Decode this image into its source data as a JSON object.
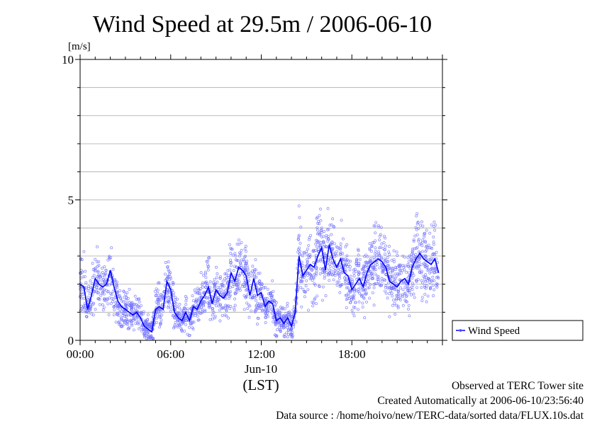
{
  "chart_data": {
    "type": "scatter",
    "title": "Wind Speed at 29.5m / 2006-06-10",
    "ylabel": "[m/s]",
    "ylim": [
      0,
      10
    ],
    "yticks": [
      "0",
      "5",
      "10"
    ],
    "xlim": [
      0,
      24
    ],
    "xticks": [
      {
        "hour": 0,
        "label": "00:00"
      },
      {
        "hour": 6,
        "label": "06:00"
      },
      {
        "hour": 12,
        "label": "12:00"
      },
      {
        "hour": 18,
        "label": "18:00"
      }
    ],
    "xdate": "Jun-10",
    "xunit": "(LST)",
    "grid": true,
    "legend_position": "right",
    "series": [
      {
        "name": "Wind Speed",
        "color": "#0000ff",
        "point_color": "#6f6fff",
        "x": [
          0.0,
          0.25,
          0.5,
          0.75,
          1.0,
          1.25,
          1.5,
          1.75,
          2.0,
          2.25,
          2.5,
          2.75,
          3.0,
          3.25,
          3.5,
          3.75,
          4.0,
          4.25,
          4.5,
          4.75,
          5.0,
          5.25,
          5.5,
          5.75,
          6.0,
          6.25,
          6.5,
          6.75,
          7.0,
          7.25,
          7.5,
          7.75,
          8.0,
          8.25,
          8.5,
          8.75,
          9.0,
          9.25,
          9.5,
          9.75,
          10.0,
          10.25,
          10.5,
          10.75,
          11.0,
          11.25,
          11.5,
          11.75,
          12.0,
          12.25,
          12.5,
          12.75,
          13.0,
          13.25,
          13.5,
          13.75,
          14.0,
          14.25,
          14.5,
          14.75,
          15.0,
          15.25,
          15.5,
          15.75,
          16.0,
          16.25,
          16.5,
          16.75,
          17.0,
          17.25,
          17.5,
          17.75,
          18.0,
          18.25,
          18.5,
          18.75,
          19.0,
          19.25,
          19.5,
          19.75,
          20.0,
          20.25,
          20.5,
          20.75,
          21.0,
          21.25,
          21.5,
          21.75,
          22.0,
          22.25,
          22.5,
          22.75,
          23.0,
          23.25,
          23.5,
          23.75
        ],
        "y": [
          2.0,
          1.9,
          1.1,
          1.6,
          2.2,
          2.0,
          1.9,
          2.0,
          2.5,
          1.9,
          1.4,
          1.2,
          1.1,
          1.0,
          0.9,
          1.0,
          0.8,
          0.5,
          0.4,
          0.3,
          1.1,
          1.2,
          1.1,
          2.1,
          1.8,
          1.0,
          0.8,
          0.7,
          1.0,
          0.7,
          1.2,
          1.1,
          1.4,
          1.6,
          1.9,
          1.3,
          1.8,
          1.6,
          1.5,
          1.7,
          2.4,
          2.1,
          2.6,
          2.5,
          2.3,
          1.6,
          2.2,
          1.6,
          1.7,
          1.2,
          1.4,
          1.3,
          0.7,
          0.8,
          0.6,
          0.8,
          0.5,
          1.0,
          3.0,
          2.3,
          2.5,
          2.7,
          2.6,
          3.0,
          3.3,
          2.5,
          3.4,
          2.9,
          2.6,
          2.9,
          2.4,
          2.3,
          1.8,
          2.0,
          2.2,
          1.9,
          2.4,
          2.7,
          2.8,
          2.9,
          2.8,
          2.6,
          2.1,
          2.0,
          1.9,
          2.1,
          2.2,
          2.0,
          2.6,
          2.9,
          3.1,
          2.9,
          2.8,
          2.7,
          2.9,
          2.4
        ]
      }
    ]
  },
  "footer": {
    "line1": "Observed at TERC Tower site",
    "line2": "Created Automatically at 2006-06-10/23:56:40",
    "line3": "Data source : /home/hoivo/new/TERC-data/sorted  data/FLUX.10s.dat"
  }
}
